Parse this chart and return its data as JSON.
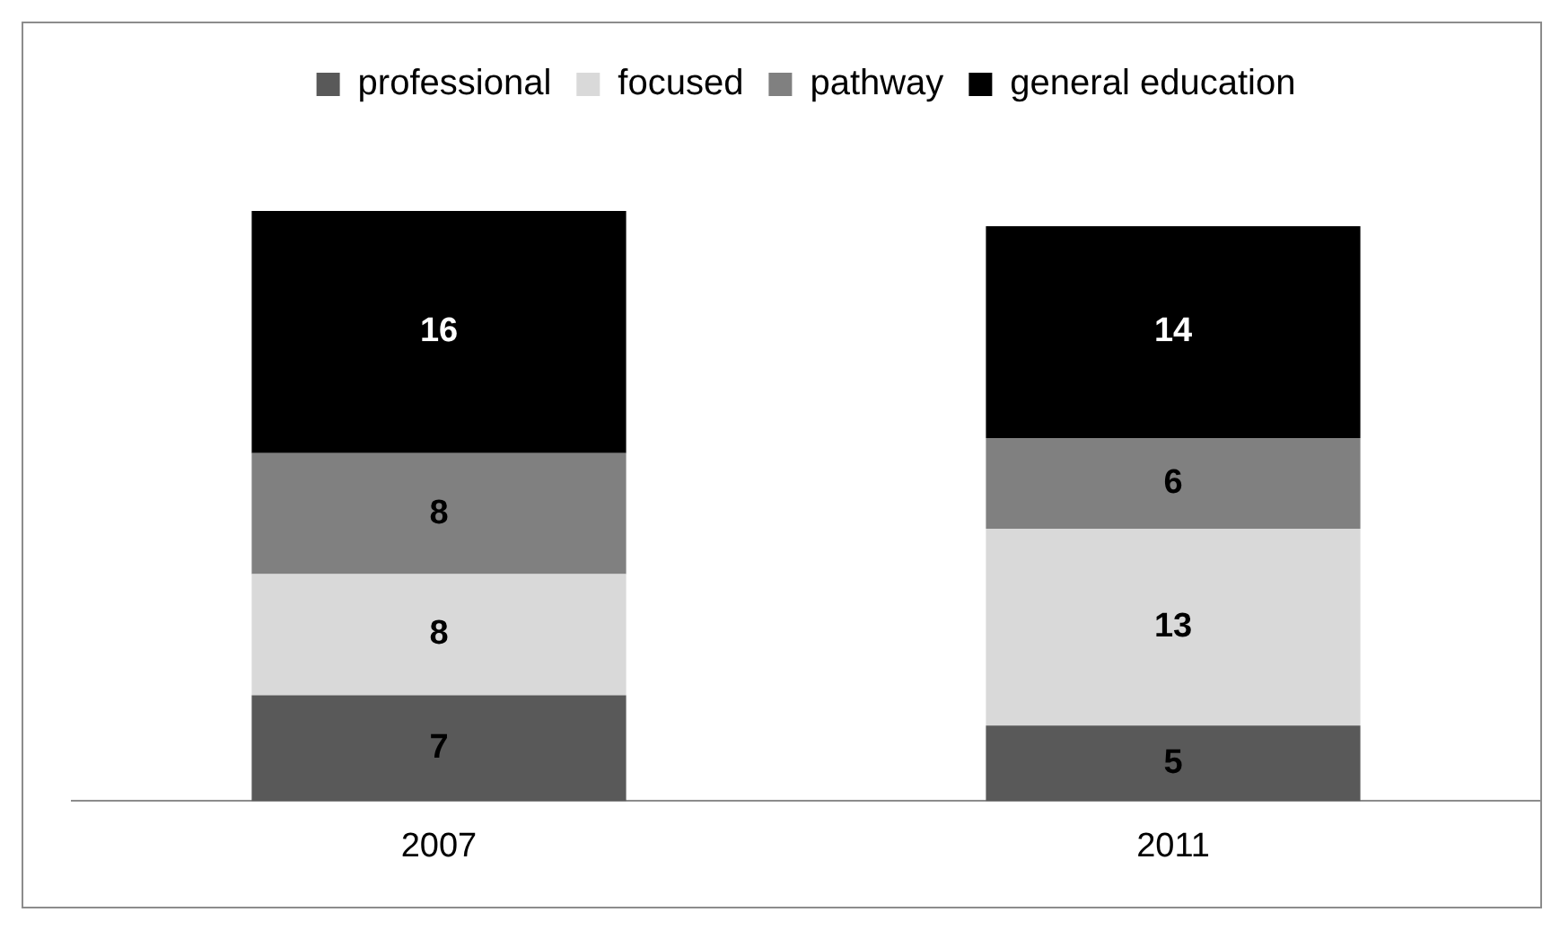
{
  "chart_data": {
    "type": "bar",
    "stacked": true,
    "categories": [
      "2007",
      "2011"
    ],
    "series": [
      {
        "name": "professional",
        "color": "#595959",
        "values": [
          7,
          5
        ]
      },
      {
        "name": "focused",
        "color": "#d9d9d9",
        "values": [
          8,
          13
        ]
      },
      {
        "name": "pathway",
        "color": "#808080",
        "values": [
          8,
          6
        ]
      },
      {
        "name": "general education",
        "color": "#000000",
        "values": [
          16,
          14
        ]
      }
    ],
    "tick_labels": "x",
    "data_labels": true,
    "legend": "top",
    "grid": false
  }
}
